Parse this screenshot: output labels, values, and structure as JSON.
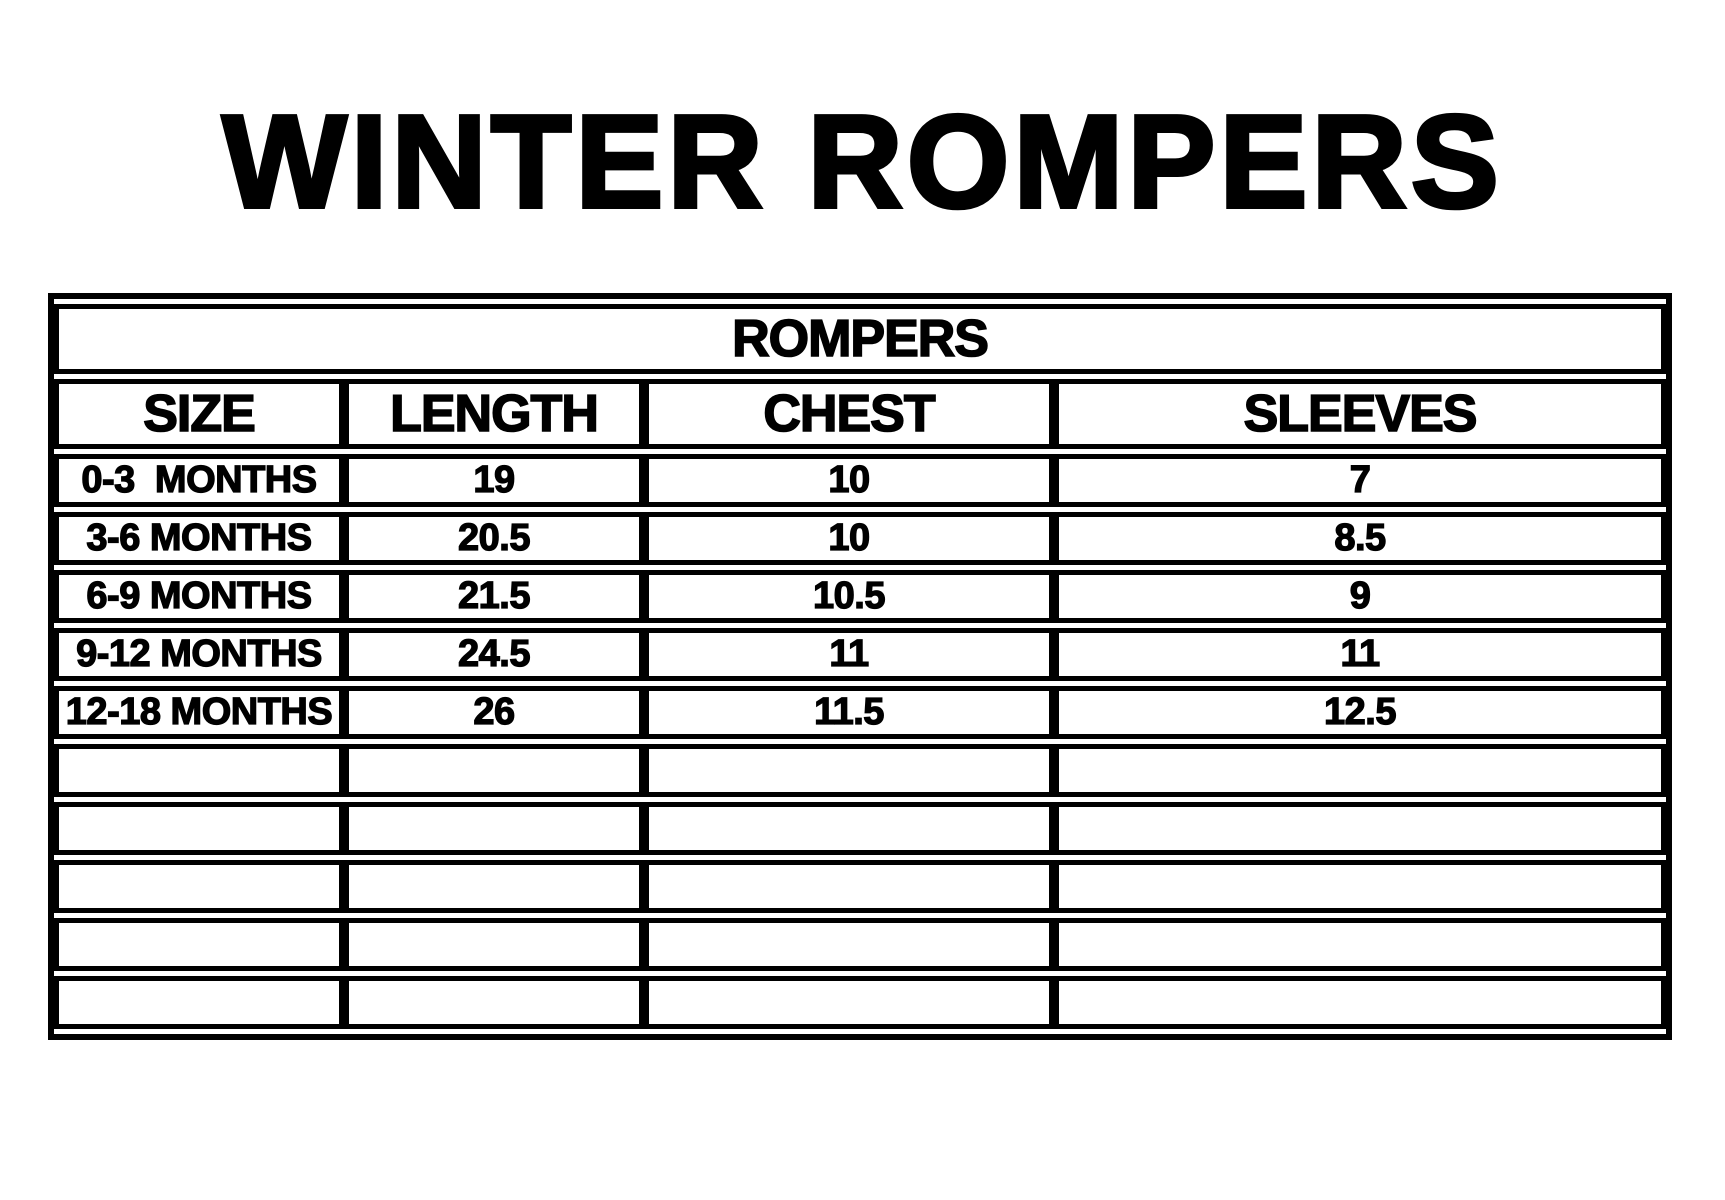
{
  "title": "WINTER ROMPERS",
  "chart_data": {
    "type": "table",
    "title": "WINTER ROMPERS",
    "table_caption": "ROMPERS",
    "columns": [
      "SIZE",
      "LENGTH",
      "CHEST",
      "SLEEVES"
    ],
    "rows": [
      [
        "0-3  MONTHS",
        "19",
        "10",
        "7"
      ],
      [
        "3-6 MONTHS",
        "20.5",
        "10",
        "8.5"
      ],
      [
        "6-9 MONTHS",
        "21.5",
        "10.5",
        "9"
      ],
      [
        "9-12 MONTHS",
        "24.5",
        "11",
        "11"
      ],
      [
        "12-18 MONTHS",
        "26",
        "11.5",
        "12.5"
      ]
    ],
    "empty_row_count": 5,
    "units_note": "",
    "layout": {
      "grid": "on",
      "size_labels_alignment": "left",
      "value_alignment": "center"
    }
  },
  "colors": {
    "ink": "#000000",
    "paper": "#ffffff"
  }
}
